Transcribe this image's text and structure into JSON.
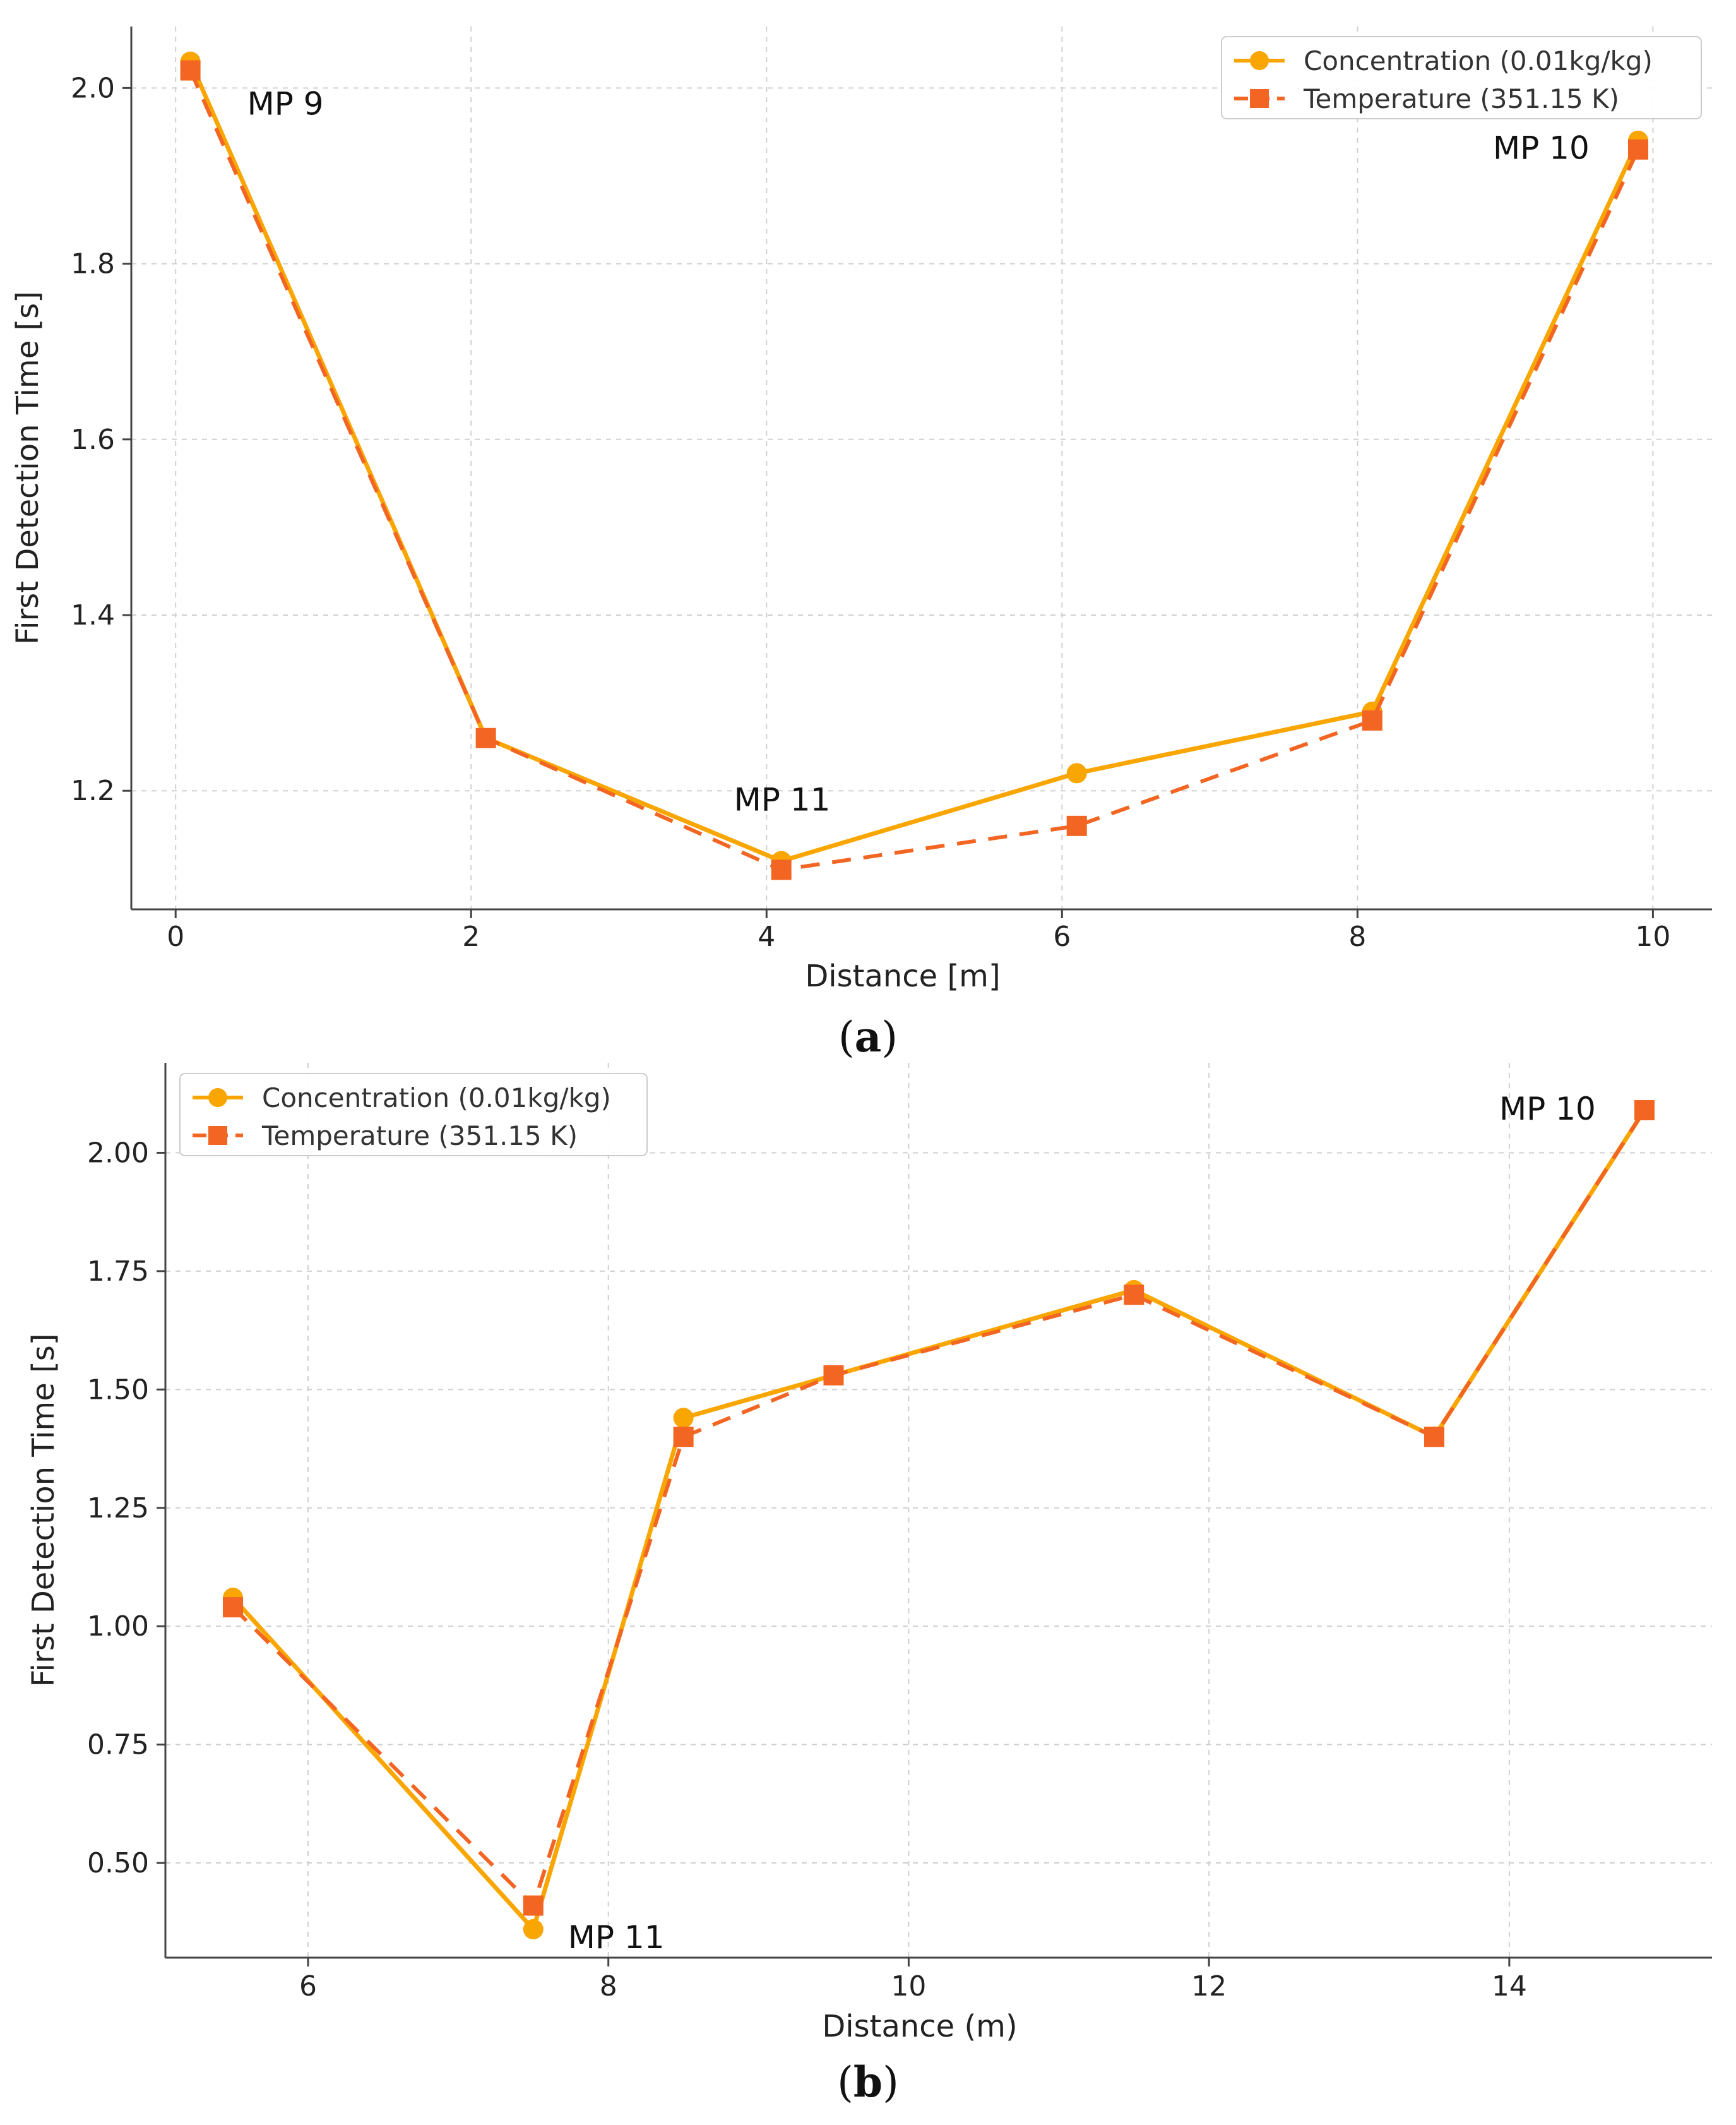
{
  "colors": {
    "concentration": "#f9a602",
    "temperature": "#f26522",
    "grid": "#d0d0d0",
    "axis": "#444444"
  },
  "chart_data": [
    {
      "type": "line",
      "caption": "a",
      "xlabel": "Distance [m]",
      "ylabel": "First Detection Time [s]",
      "xlim": [
        -0.3,
        10.4
      ],
      "ylim": [
        1.065,
        2.07
      ],
      "xticks": [
        0,
        2,
        4,
        6,
        8,
        10
      ],
      "xtick_labels": [
        "0",
        "2",
        "4",
        "6",
        "8",
        "10"
      ],
      "yticks": [
        1.2,
        1.4,
        1.6,
        1.8,
        2.0
      ],
      "ytick_labels": [
        "1.2",
        "1.4",
        "1.6",
        "1.8",
        "2.0"
      ],
      "grid": true,
      "legend_position": "top-right",
      "series": [
        {
          "name": "Concentration (0.01kg/kg)",
          "style": "solid-circle",
          "x": [
            0.1,
            2.1,
            4.1,
            6.1,
            8.1,
            9.9
          ],
          "y": [
            2.03,
            1.26,
            1.12,
            1.22,
            1.29,
            1.94
          ]
        },
        {
          "name": "Temperature (351.15 K)",
          "style": "dashed-square",
          "x": [
            0.1,
            2.1,
            4.1,
            6.1,
            8.1,
            9.9
          ],
          "y": [
            2.02,
            1.26,
            1.11,
            1.16,
            1.28,
            1.93
          ]
        }
      ],
      "annotations": [
        {
          "text": "MP 9",
          "x": 0.1,
          "y": 2.02
        },
        {
          "text": "MP 11",
          "x": 4.1,
          "y": 1.12
        },
        {
          "text": "MP 10",
          "x": 9.9,
          "y": 1.93
        }
      ]
    },
    {
      "type": "line",
      "caption": "b",
      "xlabel": "Distance (m)",
      "ylabel": "First Detection Time [s]",
      "xlim": [
        5.05,
        15.35
      ],
      "ylim": [
        0.3,
        2.19
      ],
      "xticks": [
        6,
        8,
        10,
        12,
        14
      ],
      "xtick_labels": [
        "6",
        "8",
        "10",
        "12",
        "14"
      ],
      "yticks": [
        0.5,
        0.75,
        1.0,
        1.25,
        1.5,
        1.75,
        2.0
      ],
      "ytick_labels": [
        "0.50",
        "0.75",
        "1.00",
        "1.25",
        "1.50",
        "1.75",
        "2.00"
      ],
      "grid": true,
      "legend_position": "top-left",
      "series": [
        {
          "name": "Concentration (0.01kg/kg)",
          "style": "solid-circle",
          "x": [
            5.5,
            7.5,
            8.5,
            9.5,
            11.5,
            13.5,
            14.9
          ],
          "y": [
            1.06,
            0.36,
            1.44,
            1.53,
            1.71,
            1.4,
            2.09
          ]
        },
        {
          "name": "Temperature (351.15 K)",
          "style": "dashed-square",
          "x": [
            5.5,
            7.5,
            8.5,
            9.5,
            11.5,
            13.5,
            14.9
          ],
          "y": [
            1.04,
            0.41,
            1.4,
            1.53,
            1.7,
            1.4,
            2.09
          ]
        }
      ],
      "annotations": [
        {
          "text": "MP 11",
          "x": 7.5,
          "y": 0.36
        },
        {
          "text": "MP 10",
          "x": 14.9,
          "y": 2.09
        }
      ]
    }
  ]
}
